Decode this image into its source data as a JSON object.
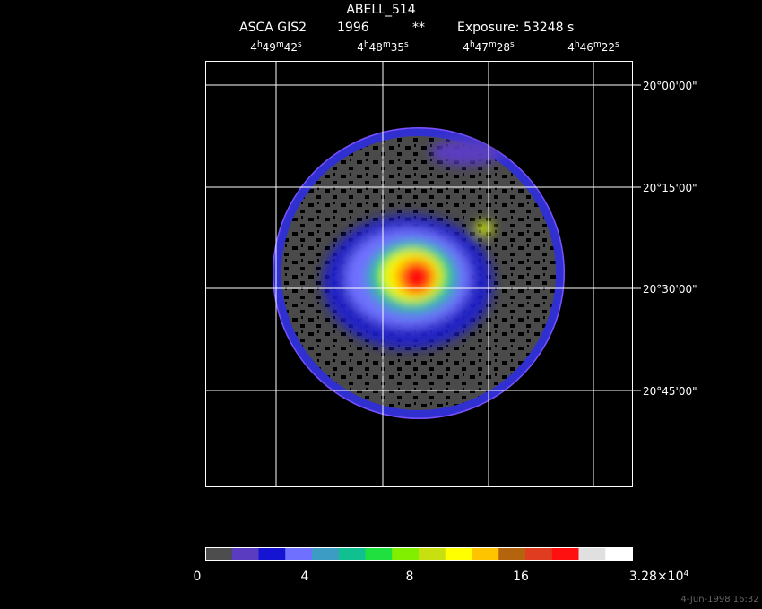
{
  "header": {
    "title": "ABELL_514",
    "instrument": "ASCA GIS2",
    "year": "1996",
    "flag": "**",
    "exposure": "Exposure: 53248 s"
  },
  "ra_labels": [
    [
      "4",
      "h",
      "49",
      "m",
      "42",
      "s"
    ],
    [
      "4",
      "h",
      "48",
      "m",
      "35",
      "s"
    ],
    [
      "4",
      "h",
      "47",
      "m",
      "28",
      "s"
    ],
    [
      "4",
      "h",
      "46",
      "m",
      "22",
      "s"
    ]
  ],
  "dec_labels": [
    "20°00'00\"",
    "20°15'00\"",
    "20°30'00\"",
    "20°45'00\""
  ],
  "colorbar": {
    "colors": [
      "#4d4d4d",
      "#5a3cc0",
      "#1414d2",
      "#7070ff",
      "#3c9cc4",
      "#10c090",
      "#20e040",
      "#80f000",
      "#c8e010",
      "#ffff00",
      "#ffc400",
      "#b4640c",
      "#e03c20",
      "#ff1010",
      "#e0e0e0",
      "#ffffff"
    ],
    "labels": [
      [
        "0"
      ],
      [
        "4"
      ],
      [
        "8"
      ],
      [
        "16"
      ],
      [
        "3.28×10",
        "4"
      ]
    ]
  },
  "footer": "4-Jun-1998 16:32"
}
